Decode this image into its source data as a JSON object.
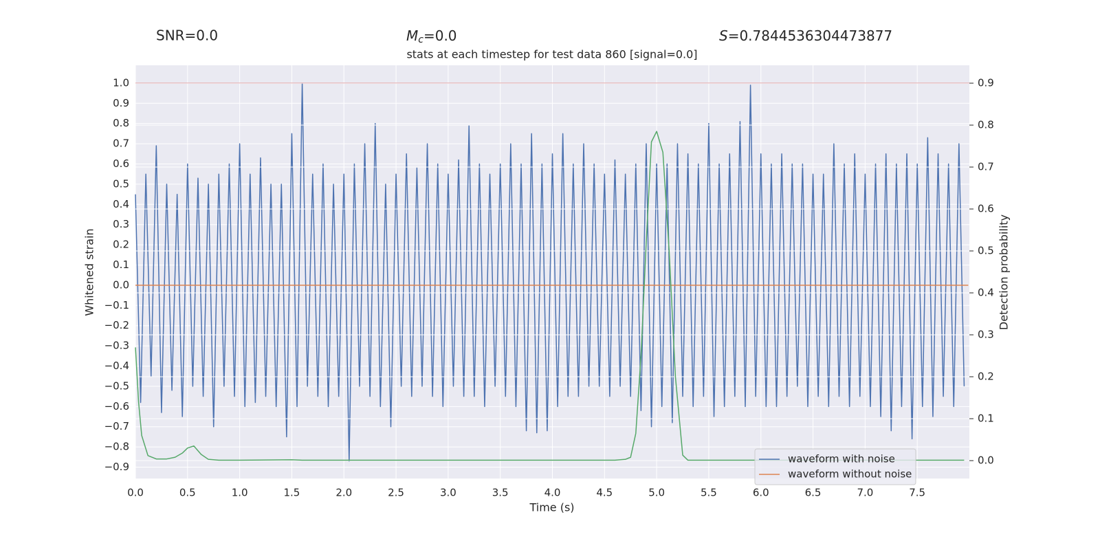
{
  "chart_data": {
    "type": "line",
    "title": "stats at each timestep for test data 860 [signal=0.0]",
    "annotations": [
      {
        "text": "SNR=0.0"
      },
      {
        "symbol": "M",
        "subscript": "c",
        "text": "=0.0"
      },
      {
        "symbol": "S",
        "text": "=0.7844536304473877"
      }
    ],
    "xlabel": "Time (s)",
    "ylabel": "Whitened strain",
    "y2label": "Detection probability",
    "xlim": [
      0,
      8.0
    ],
    "ylim": [
      -0.956,
      1.088
    ],
    "y2lim": [
      -0.0426,
      0.9426
    ],
    "xticks": [
      {
        "value": 0,
        "label": "0.0"
      },
      0.5,
      {
        "value": 1,
        "label": "1.0"
      },
      1.5,
      {
        "value": 2,
        "label": "2.0"
      },
      2.5,
      {
        "value": 3,
        "label": "3.0"
      },
      3.5,
      {
        "value": 4,
        "label": "4.0"
      },
      4.5,
      {
        "value": 5,
        "label": "5.0"
      },
      5.5,
      {
        "value": 6,
        "label": "6.0"
      },
      6.5,
      {
        "value": 7,
        "label": "7.0"
      },
      7.5
    ],
    "yticks": [
      {
        "value": -0.9,
        "label": "−0.9"
      },
      {
        "value": -0.8,
        "label": "−0.8"
      },
      {
        "value": -0.7,
        "label": "−0.7"
      },
      {
        "value": -0.6,
        "label": "−0.6"
      },
      {
        "value": -0.5,
        "label": "−0.5"
      },
      {
        "value": -0.4,
        "label": "−0.4"
      },
      {
        "value": -0.3,
        "label": "−0.3"
      },
      {
        "value": -0.2,
        "label": "−0.2"
      },
      {
        "value": -0.1,
        "label": "−0.1"
      },
      {
        "value": 0,
        "label": "0.0"
      },
      0.1,
      0.2,
      0.3,
      0.4,
      0.5,
      0.6,
      0.7,
      0.8,
      0.9,
      {
        "value": 1,
        "label": "1.0"
      }
    ],
    "y2ticks": [
      {
        "value": 0,
        "label": "0.0"
      },
      0.1,
      0.2,
      0.3,
      0.4,
      0.5,
      0.6,
      0.7,
      0.8,
      0.9
    ],
    "grid": true,
    "legend": "lower right",
    "hline": {
      "y": 1.0,
      "color": "#c44e52"
    },
    "series": [
      {
        "name": "waveform with noise",
        "color": "#4c72b0",
        "x": [
          0.0,
          0.05,
          0.1,
          0.15,
          0.2,
          0.25,
          0.3,
          0.35,
          0.4,
          0.45,
          0.5,
          0.55,
          0.6,
          0.65,
          0.7,
          0.75,
          0.8,
          0.85,
          0.9,
          0.95,
          1.0,
          1.05,
          1.1,
          1.15,
          1.2,
          1.25,
          1.3,
          1.35,
          1.4,
          1.45,
          1.5,
          1.55,
          1.6,
          1.65,
          1.7,
          1.75,
          1.8,
          1.85,
          1.9,
          1.95,
          2.0,
          2.05,
          2.1,
          2.15,
          2.2,
          2.25,
          2.3,
          2.35,
          2.4,
          2.45,
          2.5,
          2.55,
          2.6,
          2.65,
          2.7,
          2.75,
          2.8,
          2.85,
          2.9,
          2.95,
          3.0,
          3.05,
          3.1,
          3.15,
          3.2,
          3.25,
          3.3,
          3.35,
          3.4,
          3.45,
          3.5,
          3.55,
          3.6,
          3.65,
          3.7,
          3.75,
          3.8,
          3.85,
          3.9,
          3.95,
          4.0,
          4.05,
          4.1,
          4.15,
          4.2,
          4.25,
          4.3,
          4.35,
          4.4,
          4.45,
          4.5,
          4.55,
          4.6,
          4.65,
          4.7,
          4.75,
          4.8,
          4.85,
          4.9,
          4.95,
          5.0,
          5.05,
          5.1,
          5.15,
          5.2,
          5.25,
          5.3,
          5.35,
          5.4,
          5.45,
          5.5,
          5.55,
          5.6,
          5.65,
          5.7,
          5.75,
          5.8,
          5.85,
          5.9,
          5.95,
          6.0,
          6.05,
          6.1,
          6.15,
          6.2,
          6.25,
          6.3,
          6.35,
          6.4,
          6.45,
          6.5,
          6.55,
          6.6,
          6.65,
          6.7,
          6.75,
          6.8,
          6.85,
          6.9,
          6.95,
          7.0,
          7.05,
          7.1,
          7.15,
          7.2,
          7.25,
          7.3,
          7.35,
          7.4,
          7.45,
          7.5,
          7.55,
          7.6,
          7.65,
          7.7,
          7.75,
          7.8,
          7.85,
          7.9,
          7.95
        ],
        "values": [
          0.45,
          -0.58,
          0.55,
          -0.45,
          0.69,
          -0.63,
          0.5,
          -0.52,
          0.45,
          -0.65,
          0.6,
          -0.5,
          0.53,
          -0.55,
          0.5,
          -0.7,
          0.55,
          -0.5,
          0.6,
          -0.55,
          0.7,
          -0.6,
          0.55,
          -0.58,
          0.63,
          -0.55,
          0.5,
          -0.6,
          0.5,
          -0.75,
          0.75,
          -0.6,
          1.0,
          -0.5,
          0.55,
          -0.55,
          0.6,
          -0.6,
          0.5,
          -0.55,
          0.55,
          -0.87,
          0.6,
          -0.5,
          0.7,
          -0.55,
          0.8,
          -0.6,
          0.5,
          -0.7,
          0.55,
          -0.5,
          0.65,
          -0.55,
          0.58,
          -0.5,
          0.7,
          -0.55,
          0.6,
          -0.6,
          0.55,
          -0.5,
          0.62,
          -0.55,
          0.79,
          -0.55,
          0.6,
          -0.6,
          0.55,
          -0.5,
          0.6,
          -0.55,
          0.7,
          -0.6,
          0.6,
          -0.72,
          0.75,
          -0.73,
          0.6,
          -0.72,
          0.65,
          -0.6,
          0.75,
          -0.55,
          0.6,
          -0.55,
          0.7,
          -0.5,
          0.6,
          -0.5,
          0.55,
          -0.55,
          0.62,
          -0.5,
          0.55,
          -0.55,
          0.6,
          -0.62,
          0.7,
          -0.7,
          0.6,
          -0.6,
          0.6,
          -0.68,
          0.7,
          -0.55,
          0.65,
          -0.6,
          0.6,
          -0.55,
          0.8,
          -0.65,
          0.6,
          -0.6,
          0.65,
          -0.55,
          0.81,
          -0.6,
          0.99,
          -0.55,
          0.65,
          -0.6,
          0.6,
          -0.6,
          0.65,
          -0.55,
          0.6,
          -0.5,
          0.6,
          -0.6,
          0.55,
          -0.55,
          0.55,
          -0.6,
          0.7,
          -0.55,
          0.6,
          -0.6,
          0.65,
          -0.55,
          0.55,
          -0.6,
          0.6,
          -0.65,
          0.65,
          -0.72,
          0.6,
          -0.6,
          0.65,
          -0.76,
          0.6,
          -0.6,
          0.73,
          -0.65,
          0.65,
          -0.55,
          0.6,
          -0.6,
          0.7,
          -0.5
        ]
      },
      {
        "name": "waveform without noise",
        "color": "#dd8452",
        "x": [
          0.0,
          7.99
        ],
        "values": [
          0,
          0
        ]
      },
      {
        "color": "#55a868",
        "axis": "y2",
        "x": [
          0.0,
          0.03,
          0.06,
          0.12,
          0.2,
          0.3,
          0.38,
          0.45,
          0.5,
          0.56,
          0.63,
          0.7,
          0.8,
          1.0,
          1.5,
          1.6,
          2.0,
          3.0,
          4.0,
          4.6,
          4.7,
          4.75,
          4.8,
          4.85,
          4.9,
          4.95,
          5.0,
          5.06,
          5.12,
          5.18,
          5.25,
          5.3,
          6.0,
          7.95
        ],
        "values": [
          0.27,
          0.14,
          0.06,
          0.012,
          0.004,
          0.004,
          0.008,
          0.018,
          0.03,
          0.035,
          0.015,
          0.003,
          0.001,
          0.001,
          0.002,
          0.001,
          0.001,
          0.001,
          0.001,
          0.001,
          0.003,
          0.008,
          0.065,
          0.25,
          0.52,
          0.76,
          0.785,
          0.735,
          0.5,
          0.2,
          0.013,
          0.001,
          0.001,
          0.001
        ]
      }
    ]
  }
}
